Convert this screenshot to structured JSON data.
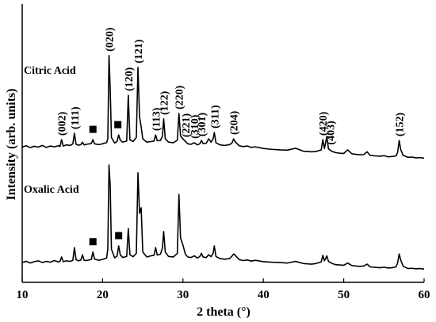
{
  "chart_data": {
    "type": "line",
    "xlabel": "2 theta (°)",
    "ylabel": "Intensity (arb. units)",
    "xlim": [
      10,
      60
    ],
    "xticks": [
      10,
      20,
      30,
      40,
      50,
      60
    ],
    "ylim": [
      0,
      100
    ],
    "x": [
      10,
      10.5,
      11,
      11.5,
      12,
      12.5,
      13,
      13.5,
      14,
      14.5,
      14.7,
      14.9,
      15.1,
      15.5,
      16,
      16.3,
      16.5,
      16.7,
      17,
      17.3,
      17.5,
      17.7,
      18,
      18.6,
      18.8,
      19,
      19.5,
      20,
      20.5,
      20.65,
      20.8,
      20.95,
      21.1,
      21.5,
      21.8,
      22,
      22.2,
      22.5,
      23,
      23.2,
      23.4,
      23.8,
      24.2,
      24.4,
      24.6,
      24.8,
      25,
      25.5,
      26,
      26.4,
      26.6,
      26.8,
      27.2,
      27.45,
      27.6,
      27.8,
      28.2,
      28.8,
      29.3,
      29.5,
      29.7,
      30,
      30.3,
      30.6,
      31,
      31.4,
      31.8,
      32.1,
      32.3,
      32.5,
      32.9,
      33.2,
      33.5,
      33.75,
      33.9,
      34.1,
      34.6,
      35.2,
      35.8,
      36.1,
      36.3,
      36.5,
      37,
      37.5,
      38,
      38.5,
      39,
      40,
      41,
      42,
      43,
      44,
      45,
      46,
      46.5,
      47.2,
      47.4,
      47.6,
      47.9,
      48.1,
      48.5,
      49,
      49.5,
      50,
      50.5,
      51,
      51.5,
      52,
      52.5,
      52.9,
      53.3,
      54,
      54.5,
      55,
      55.5,
      56,
      56.5,
      56.7,
      56.9,
      57.1,
      57.4,
      58,
      58.5,
      59,
      59.5,
      60
    ],
    "series": [
      {
        "name": "Citric Acid",
        "color": "#000000",
        "markers": [
          18.8,
          21.9
        ],
        "values": [
          49.0,
          49.5,
          48.8,
          49.3,
          49.0,
          49.6,
          48.9,
          49.4,
          49.1,
          49.5,
          49.2,
          51.7,
          49.4,
          49.8,
          49.6,
          50.2,
          54.0,
          50.0,
          49.7,
          49.9,
          50.8,
          49.8,
          50.0,
          50.3,
          51.7,
          50.2,
          49.9,
          50.2,
          50.6,
          52.0,
          82.2,
          70.0,
          52.5,
          50.5,
          51.0,
          53.4,
          51.5,
          50.8,
          51.2,
          67.8,
          51.6,
          51.0,
          52.5,
          77.9,
          60.0,
          56.3,
          52.0,
          50.8,
          51.0,
          51.2,
          53.4,
          51.3,
          51.4,
          53.0,
          59.2,
          52.0,
          50.8,
          50.6,
          51.5,
          61.2,
          53.0,
          52.0,
          51.1,
          50.2,
          50.0,
          50.6,
          49.8,
          50.2,
          51.4,
          50.3,
          50.4,
          52.0,
          50.8,
          52.0,
          54.3,
          50.6,
          49.8,
          49.6,
          49.9,
          50.5,
          52.0,
          50.9,
          49.5,
          49.2,
          49.4,
          48.9,
          49.1,
          48.5,
          48.2,
          48.0,
          47.9,
          48.6,
          47.5,
          47.3,
          47.4,
          48.0,
          51.7,
          48.5,
          52.9,
          48.4,
          47.5,
          47.0,
          46.8,
          46.7,
          48.0,
          46.6,
          46.4,
          46.2,
          46.3,
          47.3,
          46.0,
          45.8,
          45.7,
          45.9,
          45.5,
          45.6,
          45.8,
          47.0,
          51.4,
          48.0,
          46.0,
          45.3,
          45.4,
          45.1,
          45.2,
          45.0
        ]
      },
      {
        "name": "Oxalic Acid",
        "color": "#000000",
        "markers": [
          18.8,
          22.0
        ],
        "values": [
          7.2,
          7.6,
          7.0,
          7.5,
          7.8,
          7.2,
          7.6,
          7.3,
          7.9,
          7.4,
          7.6,
          9.2,
          7.5,
          7.8,
          7.6,
          8.0,
          12.6,
          8.2,
          7.8,
          8.1,
          10.0,
          8.0,
          7.9,
          8.3,
          11.0,
          8.4,
          8.0,
          8.3,
          8.8,
          12,
          42.5,
          35,
          12,
          8.9,
          9.5,
          13.2,
          10,
          9.0,
          9.4,
          19.5,
          10,
          9.3,
          10.5,
          39.7,
          25,
          27.0,
          11,
          9.2,
          9.6,
          9.8,
          12.6,
          9.9,
          10.2,
          12.5,
          18.4,
          11,
          9.4,
          9.2,
          10.5,
          31.9,
          16,
          13.5,
          10.2,
          9.2,
          9.0,
          9.6,
          8.8,
          9.4,
          10.5,
          9.2,
          9.0,
          10.0,
          9.3,
          10.5,
          13.2,
          9.4,
          8.6,
          8.4,
          8.6,
          9.5,
          10.3,
          9.8,
          8.2,
          7.9,
          8.1,
          7.7,
          8.0,
          7.5,
          7.3,
          7.2,
          7.0,
          7.6,
          6.8,
          6.6,
          6.8,
          7.4,
          9.8,
          7.8,
          9.6,
          7.6,
          6.9,
          6.4,
          6.3,
          6.2,
          7.0,
          6.1,
          5.9,
          5.8,
          5.9,
          6.6,
          5.6,
          5.4,
          5.3,
          5.5,
          5.2,
          5.3,
          5.6,
          7.0,
          10.3,
          8.0,
          5.8,
          5.0,
          5.1,
          4.9,
          5.0,
          4.8
        ]
      }
    ],
    "peak_labels": [
      {
        "label": "(002)",
        "x": 14.9
      },
      {
        "label": "(111)",
        "x": 16.5
      },
      {
        "label": "(020)",
        "x": 20.8
      },
      {
        "label": "(120)",
        "x": 23.2
      },
      {
        "label": "(121)",
        "x": 24.4
      },
      {
        "label": "(113)",
        "x": 26.6
      },
      {
        "label": "(122)",
        "x": 27.6
      },
      {
        "label": "(220)",
        "x": 29.5
      },
      {
        "label": "(221)",
        "x": 30.3
      },
      {
        "label": "(310)",
        "x": 31.4
      },
      {
        "label": "(301)",
        "x": 32.3
      },
      {
        "label": "(311)",
        "x": 33.9
      },
      {
        "label": "(204)",
        "x": 36.3
      },
      {
        "label": "(420)",
        "x": 47.4
      },
      {
        "label": "(403)",
        "x": 48.3
      },
      {
        "label": "(152)",
        "x": 56.9
      }
    ]
  }
}
